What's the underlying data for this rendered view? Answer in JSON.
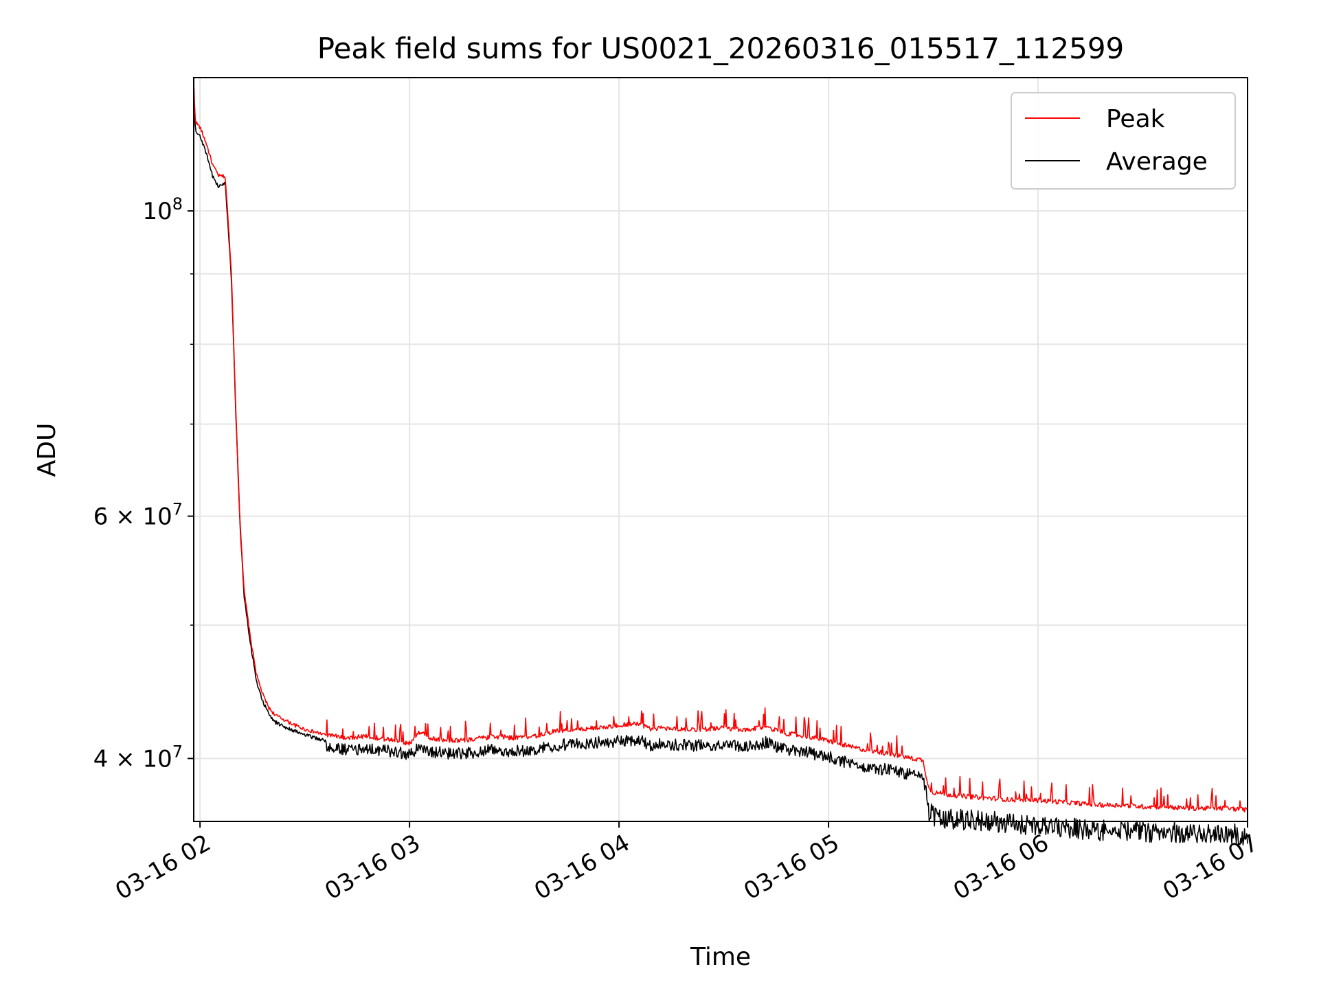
{
  "chart_data": {
    "type": "line",
    "title": "Peak field sums for US0021_20260316_015517_112599",
    "xlabel": "Time",
    "ylabel": "ADU",
    "y_scale": "log",
    "grid": true,
    "legend_position": "top-right",
    "xlim_hours": [
      1.97,
      7.0
    ],
    "ylim": [
      36000000,
      125000000
    ],
    "x_ticks": [
      {
        "hour": 2,
        "label": "03-16 02"
      },
      {
        "hour": 3,
        "label": "03-16 03"
      },
      {
        "hour": 4,
        "label": "03-16 04"
      },
      {
        "hour": 5,
        "label": "03-16 05"
      },
      {
        "hour": 6,
        "label": "03-16 06"
      },
      {
        "hour": 7,
        "label": "03-16 07"
      }
    ],
    "y_major_ticks": [
      {
        "value": 100000000,
        "base": "10",
        "exp": "8",
        "coef": ""
      },
      {
        "value": 60000000,
        "base": "10",
        "exp": "7",
        "coef": "6 × "
      },
      {
        "value": 40000000,
        "base": "10",
        "exp": "7",
        "coef": "4 × "
      }
    ],
    "y_minor_ticks": [
      50000000,
      70000000,
      80000000,
      90000000
    ],
    "series": [
      {
        "name": "Peak",
        "color": "#ff0000",
        "x_hours": [
          1.97,
          1.975,
          1.98,
          2.0,
          2.03,
          2.06,
          2.09,
          2.12,
          2.15,
          2.17,
          2.19,
          2.21,
          2.24,
          2.27,
          2.3,
          2.33,
          2.36,
          2.4,
          2.45,
          2.5,
          2.6,
          2.7,
          2.8,
          2.9,
          3.0,
          3.05,
          3.1,
          3.2,
          3.3,
          3.4,
          3.5,
          3.6,
          3.7,
          3.8,
          3.9,
          4.0,
          4.1,
          4.15,
          4.2,
          4.3,
          4.4,
          4.5,
          4.6,
          4.7,
          4.8,
          4.9,
          5.0,
          5.1,
          5.2,
          5.3,
          5.4,
          5.45,
          5.48,
          5.5,
          5.6,
          5.7,
          5.8,
          5.9,
          6.0,
          6.1,
          6.2,
          6.3,
          6.4,
          6.5,
          6.6,
          6.7,
          6.8,
          6.9,
          7.0
        ],
        "values": [
          124000000,
          118000000,
          116000000,
          115000000,
          112000000,
          108000000,
          106000000,
          106000000,
          90000000,
          72000000,
          60000000,
          53000000,
          49000000,
          46000000,
          44500000,
          43500000,
          43000000,
          42700000,
          42300000,
          42000000,
          41600000,
          41400000,
          41500000,
          41300000,
          41000000,
          41800000,
          41400000,
          41200000,
          41300000,
          41500000,
          41400000,
          41500000,
          41900000,
          42000000,
          42100000,
          42300000,
          42400000,
          42000000,
          42100000,
          42000000,
          42000000,
          42100000,
          41900000,
          42200000,
          41700000,
          41500000,
          41200000,
          40800000,
          40500000,
          40300000,
          40000000,
          39900000,
          38000000,
          37800000,
          37600000,
          37500000,
          37400000,
          37300000,
          37300000,
          37200000,
          37100000,
          37000000,
          37000000,
          36900000,
          36900000,
          36800000,
          36800000,
          36800000,
          36700000
        ]
      },
      {
        "name": "Average",
        "color": "#000000",
        "x_hours": [
          1.97,
          1.975,
          1.98,
          2.0,
          2.03,
          2.06,
          2.09,
          2.12,
          2.15,
          2.17,
          2.19,
          2.21,
          2.24,
          2.27,
          2.3,
          2.33,
          2.36,
          2.4,
          2.45,
          2.5,
          2.6,
          2.7,
          2.8,
          2.9,
          3.0,
          3.05,
          3.1,
          3.2,
          3.3,
          3.4,
          3.5,
          3.6,
          3.7,
          3.8,
          3.9,
          4.0,
          4.1,
          4.15,
          4.2,
          4.3,
          4.4,
          4.5,
          4.6,
          4.7,
          4.8,
          4.9,
          5.0,
          5.1,
          5.2,
          5.3,
          5.4,
          5.45,
          5.48,
          5.5,
          5.6,
          5.7,
          5.8,
          5.9,
          6.0,
          6.1,
          6.2,
          6.3,
          6.4,
          6.5,
          6.6,
          6.7,
          6.8,
          6.9,
          7.0
        ],
        "values": [
          124000000,
          116000000,
          114000000,
          113500000,
          110000000,
          106000000,
          104000000,
          105000000,
          89000000,
          71500000,
          59500000,
          52500000,
          48500000,
          45500000,
          44000000,
          43000000,
          42500000,
          42200000,
          41900000,
          41600000,
          41200000,
          41000000,
          41100000,
          40900000,
          40700000,
          41200000,
          40900000,
          40700000,
          40800000,
          41000000,
          40900000,
          41000000,
          41300000,
          41400000,
          41500000,
          41600000,
          41700000,
          41300000,
          41400000,
          41300000,
          41300000,
          41400000,
          41200000,
          41500000,
          41000000,
          40800000,
          40500000,
          40100000,
          39800000,
          39600000,
          39300000,
          39200000,
          37300000,
          37000000,
          36800000,
          36700000,
          36600000,
          36500000,
          36400000,
          36300000,
          36200000,
          36100000,
          36100000,
          36000000,
          36000000,
          36000000,
          35900000,
          35900000,
          35800000
        ]
      }
    ]
  }
}
